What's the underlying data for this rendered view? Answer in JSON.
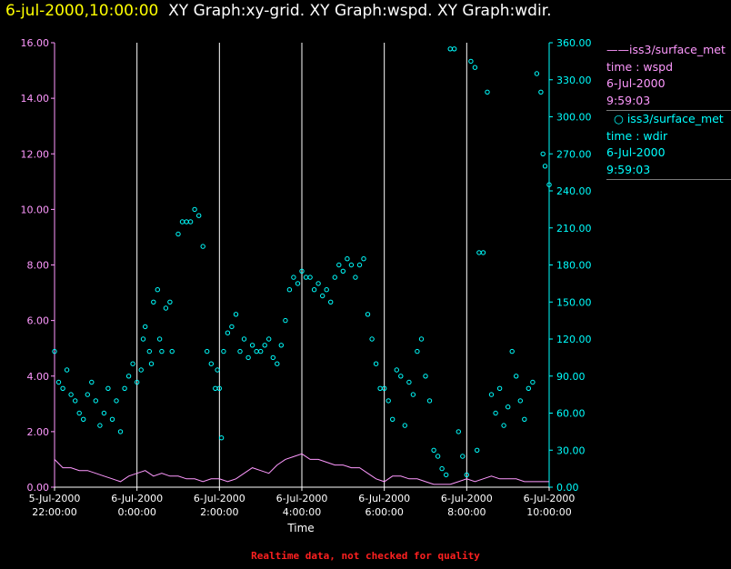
{
  "title": {
    "timestamp": "6-jul-2000,10:00:00",
    "graphs": "XY Graph:xy-grid.  XY Graph:wspd.  XY Graph:wdir."
  },
  "footer_note": "Realtime data, not checked for quality",
  "legend": [
    {
      "symbol": "line",
      "lines": [
        "iss3/surface_met",
        "time : wspd",
        "6-Jul-2000",
        "9:59:03"
      ],
      "color": "#ff99ff"
    },
    {
      "symbol": "circle",
      "lines": [
        "iss3/surface_met",
        "time : wdir",
        "6-Jul-2000",
        "9:59:03"
      ],
      "color": "#00ffff"
    }
  ],
  "chart_data": {
    "type": "line",
    "xlabel": "Time",
    "xlim_hours": [
      -2,
      10
    ],
    "x_ticks": [
      {
        "h": -2,
        "date": "5-Jul-2000",
        "time": "22:00:00"
      },
      {
        "h": 0,
        "date": "6-Jul-2000",
        "time": "0:00:00"
      },
      {
        "h": 2,
        "date": "6-Jul-2000",
        "time": "2:00:00"
      },
      {
        "h": 4,
        "date": "6-Jul-2000",
        "time": "4:00:00"
      },
      {
        "h": 6,
        "date": "6-Jul-2000",
        "time": "6:00:00"
      },
      {
        "h": 8,
        "date": "6-Jul-2000",
        "time": "8:00:00"
      },
      {
        "h": 10,
        "date": "6-Jul-2000",
        "time": "10:00:00"
      }
    ],
    "grid_x_hours": [
      0,
      2,
      4,
      6,
      8,
      10
    ],
    "y_left": {
      "range": [
        0,
        16
      ],
      "ticks": [
        "0.00",
        "2.00",
        "4.00",
        "6.00",
        "8.00",
        "10.00",
        "12.00",
        "14.00",
        "16.00"
      ],
      "color": "#ff99ff"
    },
    "y_right": {
      "range": [
        0,
        360
      ],
      "ticks": [
        "0.00",
        "30.00",
        "60.00",
        "90.00",
        "120.00",
        "150.00",
        "180.00",
        "210.00",
        "240.00",
        "270.00",
        "300.00",
        "330.00",
        "360.00"
      ],
      "color": "#00ffff"
    },
    "series": [
      {
        "name": "wspd",
        "axis": "left",
        "color": "#ff99ff",
        "style": "line",
        "points": [
          [
            -2.0,
            1.0
          ],
          [
            -1.8,
            0.7
          ],
          [
            -1.6,
            0.7
          ],
          [
            -1.4,
            0.6
          ],
          [
            -1.2,
            0.6
          ],
          [
            -1.0,
            0.5
          ],
          [
            -0.8,
            0.4
          ],
          [
            -0.6,
            0.3
          ],
          [
            -0.4,
            0.2
          ],
          [
            -0.2,
            0.4
          ],
          [
            0.0,
            0.5
          ],
          [
            0.2,
            0.6
          ],
          [
            0.4,
            0.4
          ],
          [
            0.6,
            0.5
          ],
          [
            0.8,
            0.4
          ],
          [
            1.0,
            0.4
          ],
          [
            1.2,
            0.3
          ],
          [
            1.4,
            0.3
          ],
          [
            1.6,
            0.2
          ],
          [
            1.8,
            0.3
          ],
          [
            2.0,
            0.3
          ],
          [
            2.2,
            0.2
          ],
          [
            2.4,
            0.3
          ],
          [
            2.6,
            0.5
          ],
          [
            2.8,
            0.7
          ],
          [
            3.0,
            0.6
          ],
          [
            3.2,
            0.5
          ],
          [
            3.4,
            0.8
          ],
          [
            3.6,
            1.0
          ],
          [
            3.8,
            1.1
          ],
          [
            4.0,
            1.2
          ],
          [
            4.2,
            1.0
          ],
          [
            4.4,
            1.0
          ],
          [
            4.6,
            0.9
          ],
          [
            4.8,
            0.8
          ],
          [
            5.0,
            0.8
          ],
          [
            5.2,
            0.7
          ],
          [
            5.4,
            0.7
          ],
          [
            5.6,
            0.5
          ],
          [
            5.8,
            0.3
          ],
          [
            6.0,
            0.2
          ],
          [
            6.2,
            0.4
          ],
          [
            6.4,
            0.4
          ],
          [
            6.6,
            0.3
          ],
          [
            6.8,
            0.3
          ],
          [
            7.0,
            0.2
          ],
          [
            7.2,
            0.1
          ],
          [
            7.4,
            0.1
          ],
          [
            7.6,
            0.1
          ],
          [
            7.8,
            0.2
          ],
          [
            8.0,
            0.3
          ],
          [
            8.2,
            0.2
          ],
          [
            8.4,
            0.3
          ],
          [
            8.6,
            0.4
          ],
          [
            8.8,
            0.3
          ],
          [
            9.0,
            0.3
          ],
          [
            9.2,
            0.3
          ],
          [
            9.4,
            0.2
          ],
          [
            9.6,
            0.2
          ],
          [
            9.8,
            0.2
          ],
          [
            10.0,
            0.2
          ]
        ]
      },
      {
        "name": "wdir",
        "axis": "right",
        "color": "#00ffff",
        "style": "circle",
        "points": [
          [
            -2.0,
            110
          ],
          [
            -1.9,
            85
          ],
          [
            -1.8,
            80
          ],
          [
            -1.7,
            95
          ],
          [
            -1.6,
            75
          ],
          [
            -1.5,
            70
          ],
          [
            -1.4,
            60
          ],
          [
            -1.3,
            55
          ],
          [
            -1.2,
            75
          ],
          [
            -1.1,
            85
          ],
          [
            -1.0,
            70
          ],
          [
            -0.9,
            50
          ],
          [
            -0.8,
            60
          ],
          [
            -0.7,
            80
          ],
          [
            -0.6,
            55
          ],
          [
            -0.5,
            70
          ],
          [
            -0.4,
            45
          ],
          [
            -0.3,
            80
          ],
          [
            -0.2,
            90
          ],
          [
            -0.1,
            100
          ],
          [
            0.0,
            85
          ],
          [
            0.1,
            95
          ],
          [
            0.15,
            120
          ],
          [
            0.2,
            130
          ],
          [
            0.3,
            110
          ],
          [
            0.35,
            100
          ],
          [
            0.4,
            150
          ],
          [
            0.5,
            160
          ],
          [
            0.55,
            120
          ],
          [
            0.6,
            110
          ],
          [
            0.7,
            145
          ],
          [
            0.8,
            150
          ],
          [
            0.85,
            110
          ],
          [
            1.0,
            205
          ],
          [
            1.1,
            215
          ],
          [
            1.2,
            215
          ],
          [
            1.3,
            215
          ],
          [
            1.4,
            225
          ],
          [
            1.5,
            220
          ],
          [
            1.6,
            195
          ],
          [
            1.7,
            110
          ],
          [
            1.8,
            100
          ],
          [
            1.9,
            80
          ],
          [
            1.95,
            95
          ],
          [
            2.0,
            80
          ],
          [
            2.05,
            40
          ],
          [
            2.1,
            110
          ],
          [
            2.2,
            125
          ],
          [
            2.3,
            130
          ],
          [
            2.4,
            140
          ],
          [
            2.5,
            110
          ],
          [
            2.6,
            120
          ],
          [
            2.7,
            105
          ],
          [
            2.8,
            115
          ],
          [
            2.9,
            110
          ],
          [
            3.0,
            110
          ],
          [
            3.1,
            115
          ],
          [
            3.2,
            120
          ],
          [
            3.3,
            105
          ],
          [
            3.4,
            100
          ],
          [
            3.5,
            115
          ],
          [
            3.6,
            135
          ],
          [
            3.7,
            160
          ],
          [
            3.8,
            170
          ],
          [
            3.9,
            165
          ],
          [
            4.0,
            175
          ],
          [
            4.1,
            170
          ],
          [
            4.2,
            170
          ],
          [
            4.3,
            160
          ],
          [
            4.4,
            165
          ],
          [
            4.5,
            155
          ],
          [
            4.6,
            160
          ],
          [
            4.7,
            150
          ],
          [
            4.8,
            170
          ],
          [
            4.9,
            180
          ],
          [
            5.0,
            175
          ],
          [
            5.1,
            185
          ],
          [
            5.2,
            180
          ],
          [
            5.3,
            170
          ],
          [
            5.4,
            180
          ],
          [
            5.5,
            185
          ],
          [
            5.6,
            140
          ],
          [
            5.7,
            120
          ],
          [
            5.8,
            100
          ],
          [
            5.9,
            80
          ],
          [
            6.0,
            80
          ],
          [
            6.1,
            70
          ],
          [
            6.2,
            55
          ],
          [
            6.3,
            95
          ],
          [
            6.4,
            90
          ],
          [
            6.5,
            50
          ],
          [
            6.6,
            85
          ],
          [
            6.7,
            75
          ],
          [
            6.8,
            110
          ],
          [
            6.9,
            120
          ],
          [
            7.0,
            90
          ],
          [
            7.1,
            70
          ],
          [
            7.2,
            30
          ],
          [
            7.3,
            25
          ],
          [
            7.4,
            15
          ],
          [
            7.5,
            10
          ],
          [
            7.6,
            355
          ],
          [
            7.7,
            355
          ],
          [
            7.8,
            45
          ],
          [
            7.9,
            25
          ],
          [
            8.0,
            10
          ],
          [
            8.1,
            345
          ],
          [
            8.2,
            340
          ],
          [
            8.25,
            30
          ],
          [
            8.3,
            190
          ],
          [
            8.4,
            190
          ],
          [
            8.5,
            320
          ],
          [
            8.6,
            75
          ],
          [
            8.7,
            60
          ],
          [
            8.8,
            80
          ],
          [
            8.9,
            50
          ],
          [
            9.0,
            65
          ],
          [
            9.1,
            110
          ],
          [
            9.2,
            90
          ],
          [
            9.3,
            70
          ],
          [
            9.4,
            55
          ],
          [
            9.5,
            80
          ],
          [
            9.6,
            85
          ],
          [
            9.7,
            335
          ],
          [
            9.8,
            320
          ],
          [
            9.85,
            270
          ],
          [
            9.9,
            260
          ],
          [
            10.0,
            245
          ]
        ]
      }
    ]
  }
}
